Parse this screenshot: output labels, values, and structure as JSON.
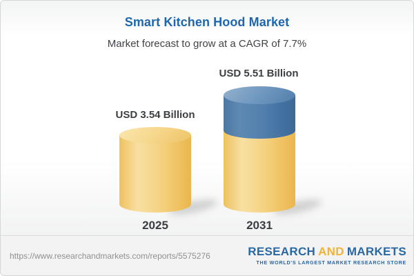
{
  "header": {
    "title": "Smart Kitchen Hood Market",
    "subtitle": "Market forecast to grow at a CAGR of 7.7%",
    "title_color": "#1e66ae"
  },
  "chart_data": {
    "type": "bar",
    "subtype": "3d-cylinder",
    "categories": [
      "2025",
      "2031"
    ],
    "values": [
      3.54,
      5.51
    ],
    "unit": "USD Billion",
    "value_labels": [
      "USD 3.54 Billion",
      "USD 5.51 Billion"
    ],
    "title": "Smart Kitchen Hood Market",
    "subtitle": "Market forecast to grow at a CAGR of 7.7%",
    "cagr_pct": 7.7,
    "series": [
      {
        "name": "base-value",
        "values": [
          3.54,
          3.54
        ],
        "color": "#f3cc74"
      },
      {
        "name": "growth-segment",
        "values": [
          0,
          1.97
        ],
        "color": "#527fae"
      }
    ],
    "legend": "none",
    "axes": "hidden",
    "grid": false,
    "colors": {
      "cylinder_gold": "#f3cc74",
      "cylinder_gold_highlight": "#f8e0a2",
      "cylinder_gold_edge": "#e9b650",
      "cylinder_blue": "#527fae",
      "cylinder_blue_cap": "#7199c0",
      "label_text": "#3c4043"
    }
  },
  "footer": {
    "url": "https://www.researchandmarkets.com/reports/5575276",
    "logo": {
      "word1": "RESEARCH",
      "word2": "AND",
      "word3": "MARKETS",
      "tagline": "THE WORLD'S LARGEST MARKET RESEARCH STORE",
      "blue": "#2a67a5",
      "gold": "#f2b234"
    }
  }
}
